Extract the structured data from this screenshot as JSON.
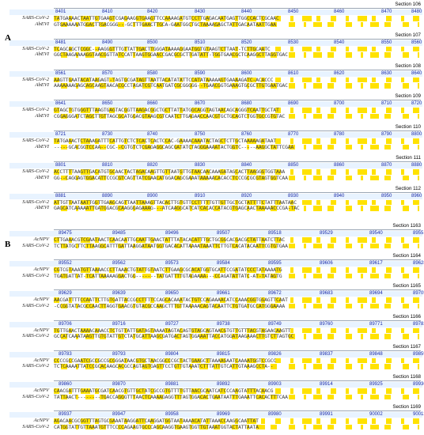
{
  "panels": [
    {
      "label": "A",
      "sections": [
        {
          "title": "Section 106",
          "nums": [
            "8401",
            "8410",
            "8420",
            "8430",
            "8440",
            "8450",
            "8460",
            "8470",
            "8480"
          ],
          "rows": [
            {
              "name": "SARS-CoV-2",
              "seq": "TATGAAAACTAATTGTGAAGTCGAGAAGGTGAAGTTCCAAAAGATGTCCTTGAGACAATGAGTTGGCCACTCGCAAC"
            },
            {
              "name": "AbEVI",
              "seq": "GTGAAAAAATGGACTTGACGGG---GCTTTGAACTTGCA-GAATGGCTGCTAAAAGAGCTATTGACAATAATTGAA"
            }
          ]
        },
        {
          "title": "Section 107",
          "nums": [
            "8481",
            "8490",
            "8500",
            "8510",
            "8520",
            "8530",
            "8540",
            "8550",
            "8560"
          ],
          "rows": [
            {
              "name": "SARS-CoV-2",
              "seq": "TCAGCAGCTCGGC--AAGGGTTTGTTATTGACTTGGGATAAAAGGAATGGTGTAAGTCTTAAT-TCTTGCAATC"
            },
            {
              "name": "AbEVI",
              "seq": "GGCTAAGAAAAGGTAACGGTTATCCATTAAGTGGAACCGACGCGCTTGATATT-TGGTGAACGCTCAAGGCTTAGGTGAC"
            }
          ]
        },
        {
          "title": "Section 108",
          "nums": [
            "8561",
            "8570",
            "8580",
            "8590",
            "8600",
            "8610",
            "8620",
            "8630",
            "8640"
          ],
          "rows": [
            {
              "name": "SARS-CoV-2",
              "seq": "AAGTTGAATACATAAGAGT-TAGTGCGATAGTTAATTACATATATTCCATATAAAAAGTGAAAAGATC-ACACCC"
            },
            {
              "name": "AbEVI",
              "seq": "AAAAAAAGAGCAGCAAGTAACACGCCTAGATCGTCAATGATCGCGGGGG--TGAACGGTGAAAGTGCGCTTGTGAATGAC"
            }
          ]
        },
        {
          "title": "Section 109",
          "nums": [
            "8641",
            "8650",
            "8660",
            "8670",
            "8680",
            "8690",
            "8700",
            "8710",
            "8720"
          ],
          "rows": [
            {
              "name": "SARS-CoV-2",
              "seq": "GTAGCTGTGGGTTTAAGTGAGTACGGTTAAGACGGCTGCTTATTATGGCAGGTAGTAACAGCAGGGTCAATTGCTAT"
            },
            {
              "name": "AbEVI",
              "seq": "CGGAGGGATCTAGCTTGTTAGCGCATGGACGTAAGCGTCAATCTTGAGAACCAACGTGCTGCAGTCTGGTGCCGTGTAC"
            }
          ]
        },
        {
          "title": "Section 110",
          "nums": [
            "8721",
            "8730",
            "8740",
            "8750",
            "8760",
            "8770",
            "8780",
            "8790",
            "8800"
          ],
          "rows": [
            {
              "name": "SARS-CoV-2",
              "seq": "TATGAAACTCTAAAGATTTCATTGTCTCTCACTCACTCCAC-GAAAACAAATACTAGCTCTTGCTAAAAAGATAAT"
            },
            {
              "name": "AbEVI",
              "seq": "-----GCACGGTCCAA--CGC--CGTGTCTCGAGAGGCAGCGATATCTAGGGAAAATACTGGTC-----AAGGCTATTCGAA"
            }
          ]
        },
        {
          "title": "Section 111",
          "nums": [
            "8801",
            "8810",
            "8820",
            "8830",
            "8840",
            "8850",
            "8860",
            "8870",
            "8880"
          ],
          "rows": [
            {
              "name": "SARS-CoV-2",
              "seq": "ACCTTTTAAGTTGACATGTGCAACTACTAGACAAGTTGTTAATGTTGTAACAACAAAGATAGCACTTAAGGGTGGTAAA"
            },
            {
              "name": "AbEVI",
              "seq": "GG--CAGGAGTGGACATTCCGCGTCAGTTATCGAACATGGACAGCGAAATAAAAACACACCTCCCGCGCGTAGTGGTCAA"
            }
          ]
        },
        {
          "title": "Section 112",
          "nums": [
            "8881",
            "8890",
            "8900",
            "8910",
            "8920",
            "8930",
            "8940",
            "8950",
            "8960"
          ],
          "rows": [
            {
              "name": "SARS-CoV-2",
              "seq": "ATTGTTAATAATTGGTTGAAGCAGTTAATTAAAGTTACACTTGTGTTCCTTTTTGTTGTTGCTGCTATTTTCTATTTAATAAC"
            },
            {
              "name": "AbEVI",
              "seq": "GAGCATCAAAAATTGATGGACGCAAGGGAGAAAG---ATCAAGGCATCATCACACCATACGTGAGCAACTAAAAACCCGA-TAC"
            }
          ]
        }
      ]
    },
    {
      "label": "B",
      "sections": [
        {
          "title": "Section 1163",
          "nums": [
            "89475",
            "89485",
            "89496",
            "89507",
            "89518",
            "89529",
            "89540",
            "89551"
          ],
          "rows": [
            {
              "name": "AcNPV",
              "seq": "CTTGAAACGTCGAATAACTCAACAATTGCAATTGAACTATTTATACACATTTGCTGCGGCACGACGCTATTAATCTTAC"
            },
            {
              "name": "SARS-CoV-2",
              "seq": "TCTTATGCTTCTTAAGGCATTTGATTAAGGATAATGGTGACACATTAAAATAAATTCTTGTCACATACAATTCGTGTGAA"
            }
          ]
        },
        {
          "title": "Section 1164",
          "nums": [
            "89552",
            "89562",
            "89573",
            "89584",
            "89595",
            "89606",
            "89617",
            "89628"
          ],
          "rows": [
            {
              "name": "AcNPV",
              "seq": "CGTCGTAAATGTTAAAACCCTTAAACTGTATTGTAATCTTGAAGCGCACATGGTGCATTCCGATATCCCTATAAAATG"
            },
            {
              "name": "SARS-CoV-2",
              "seq": "TGATGATTAT-TCATTAAAAAGGACTGG-------TATGATTTTGTAGAAAA---CCAGATATTATC-AT-TATAGTG"
            }
          ]
        },
        {
          "title": "Section 1165",
          "nums": [
            "89629",
            "89639",
            "89650",
            "89661",
            "89672",
            "89683",
            "89694",
            "89705"
          ],
          "rows": [
            {
              "name": "AcNPV",
              "seq": "AACGATTTTCCAATTCTTGTGATTACCGCCTTTTCCAGCACAAATACTGTCCAGAAAACATCCAAACGGTGGAGTTCAAT"
            },
            {
              "name": "SARS-CoV-2",
              "seq": "-CCGGTATACGCCAACTTAGGTGAACGTGTACGCCAAGCTTTGTTAAAAACAGTACAATTCTGTGATGCCATGGGAAAA"
            }
          ]
        },
        {
          "title": "Section 1166",
          "nums": [
            "89706",
            "89716",
            "89727",
            "89738",
            "89749",
            "89760",
            "89771",
            "89782"
          ],
          "rows": [
            {
              "name": "AcNPV",
              "seq": "TGTTGAACTAAAACAAACCTCTGTTATTGATAGTAAAATAGTACAGTGTAGCAGTAACGTGTTGTTTACGTAGAACAAGTT"
            },
            {
              "name": "SARS-CoV-2",
              "seq": "GCCATCAAATAAGTTGTGTATTGTCTATGCATTAAGCGATGACTAGTGGAAATTACCATGGATAAGAAACTTGTCTTAGTGC"
            }
          ]
        },
        {
          "title": "Section 1167",
          "nums": [
            "89783",
            "89793",
            "89804",
            "89815",
            "89826",
            "89837",
            "89848",
            "89859"
          ],
          "rows": [
            {
              "name": "AcNPV",
              "seq": "CCCCGCCGAATCGCCGCCGCGGGATAACGTGCTAACGGCCCGCTACTGAAGCTTAAAAGAATCAAAATGGTCCGCC"
            },
            {
              "name": "SARS-CoV-2",
              "seq": "TCTCAAAATTATCCGCACAAGCACGCCAGTAGTGAGTTCCTGTTGTAAATCTTTATTGTCATTGTAAAGCCTA--"
            }
          ]
        },
        {
          "title": "Section 1168",
          "nums": [
            "89860",
            "89870",
            "89881",
            "89892",
            "89903",
            "89914",
            "89925",
            "89936"
          ],
          "rows": [
            {
              "name": "AcNPV",
              "seq": "CAACGATTTGAAATGCGATCAACGTGTTGCTATCGCCGTGTTTTGTTAACGCAATCATCCCAAGTATTTACAACG"
            },
            {
              "name": "SARS-CoV-2",
              "seq": "TATTAACT--------TGACCAGGGTTTAACTCAAAAGAGGTTTAGTGGACACTGAATAATTTGAAATTCACACTTTCAA"
            }
          ]
        },
        {
          "title": "Section 1169",
          "nums": [
            "89937",
            "89947",
            "89958",
            "89969",
            "89980",
            "89991",
            "90002",
            "90013"
          ],
          "rows": [
            {
              "name": "AcNPV",
              "seq": "AGACAACGCGGTTTAGTGCGAAATAAGGATTCAAGGATGGTAATAAAACATATTAAACCAAGGCAATTAT"
            },
            {
              "name": "SARS-CoV-2",
              "seq": "CATGGTATTGTTAAATGTTTCCCCAGAAGTGCCCAGCAAGGTGAAGTGGTTGTAAATGGTACTATTAATA"
            }
          ]
        }
      ]
    }
  ]
}
